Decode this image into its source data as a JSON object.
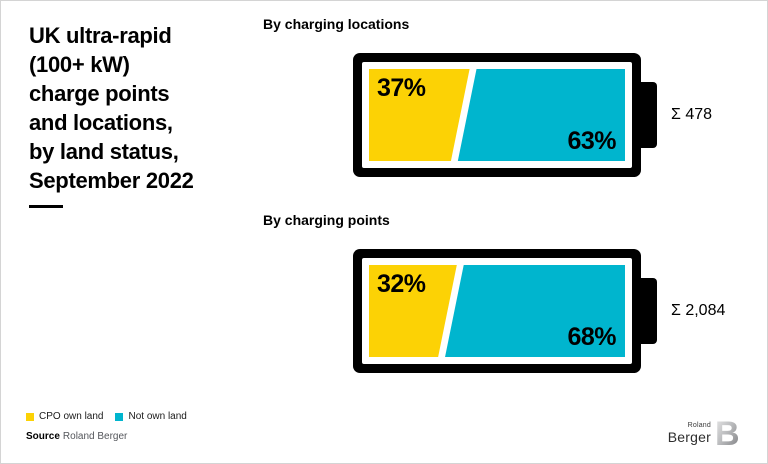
{
  "page": {
    "title": "UK ultra-rapid\n(100+ kW)\ncharge points\nand locations,\nby land status,\nSeptember 2022"
  },
  "chart_data": [
    {
      "type": "bar",
      "style": "battery-gauge",
      "title": "By charging locations",
      "total": 478,
      "total_label": "Σ 478",
      "categories": [
        "CPO own land",
        "Not own land"
      ],
      "series": [
        {
          "name": "CPO own land",
          "value": 37,
          "label": "37%",
          "color": "#FCD205"
        },
        {
          "name": "Not own land",
          "value": 63,
          "label": "63%",
          "color": "#00B5CE"
        }
      ]
    },
    {
      "type": "bar",
      "style": "battery-gauge",
      "title": "By charging points",
      "total": 2084,
      "total_label": "Σ 2,084",
      "categories": [
        "CPO own land",
        "Not own land"
      ],
      "series": [
        {
          "name": "CPO own land",
          "value": 32,
          "label": "32%",
          "color": "#FCD205"
        },
        {
          "name": "Not own land",
          "value": 68,
          "label": "68%",
          "color": "#00B5CE"
        }
      ]
    }
  ],
  "legend": {
    "items": [
      {
        "label": "CPO own land",
        "color": "#FCD205"
      },
      {
        "label": "Not own land",
        "color": "#00B5CE"
      }
    ]
  },
  "source": {
    "label": "Source",
    "value": "Roland Berger"
  },
  "logo": {
    "line1": "Roland",
    "line2": "Berger",
    "mark": "B"
  },
  "colors": {
    "yellow": "#FCD205",
    "teal": "#00B5CE",
    "black": "#000000"
  }
}
